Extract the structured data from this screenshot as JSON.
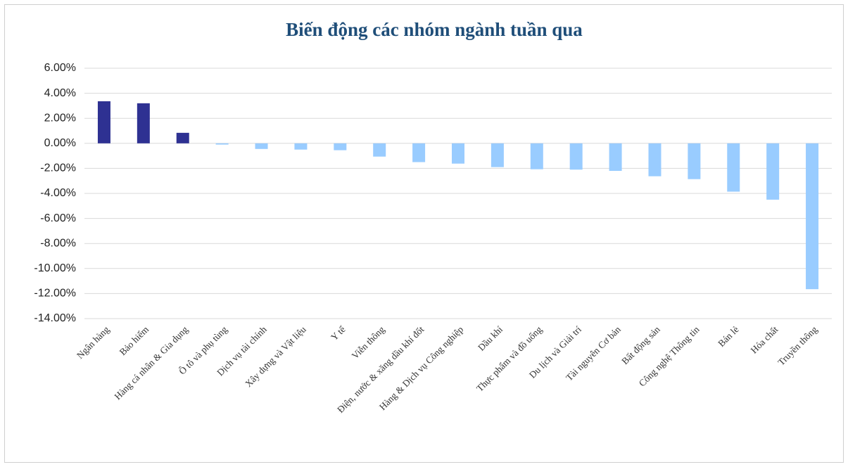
{
  "chart_data": {
    "type": "bar",
    "title": "Biến động các nhóm ngành tuần qua",
    "categories": [
      "Ngân hàng",
      "Bảo hiểm",
      "Hàng cá nhân & Gia dụng",
      "Ô tô và phụ tùng",
      "Dịch vụ tài chính",
      "Xây dựng và Vật liệu",
      "Y tế",
      "Viễn thông",
      "Điện, nước & xăng dầu khí đốt",
      "Hàng & Dịch vụ Công nghiệp",
      "Dầu khí",
      "Thực phẩm và đồ uống",
      "Du lịch và Giải trí",
      "Tài nguyên Cơ bản",
      "Bất động sản",
      "Công nghệ Thông tin",
      "Bán lẻ",
      "Hóa chất",
      "Truyền thông"
    ],
    "values": [
      3.36,
      3.2,
      0.84,
      -0.1,
      -0.45,
      -0.5,
      -0.55,
      -1.06,
      -1.5,
      -1.62,
      -1.9,
      -2.07,
      -2.1,
      -2.2,
      -2.63,
      -2.86,
      -3.86,
      -4.5,
      -11.65
    ],
    "positive_color": "#2e3192",
    "negative_color": "#99ccff",
    "ylim": [
      -14,
      6
    ],
    "yticks": [
      {
        "value": -14,
        "label": "-14.00%"
      },
      {
        "value": -12,
        "label": "-12.00%"
      },
      {
        "value": -10,
        "label": "-10.00%"
      },
      {
        "value": -8,
        "label": "-8.00%"
      },
      {
        "value": -6,
        "label": "-6.00%"
      },
      {
        "value": -4,
        "label": "-4.00%"
      },
      {
        "value": -2,
        "label": "-2.00%"
      },
      {
        "value": 0,
        "label": "0.00%"
      },
      {
        "value": 2,
        "label": "2.00%"
      },
      {
        "value": 4,
        "label": "4.00%"
      },
      {
        "value": 6,
        "label": "6.00%"
      }
    ],
    "grid": true
  }
}
